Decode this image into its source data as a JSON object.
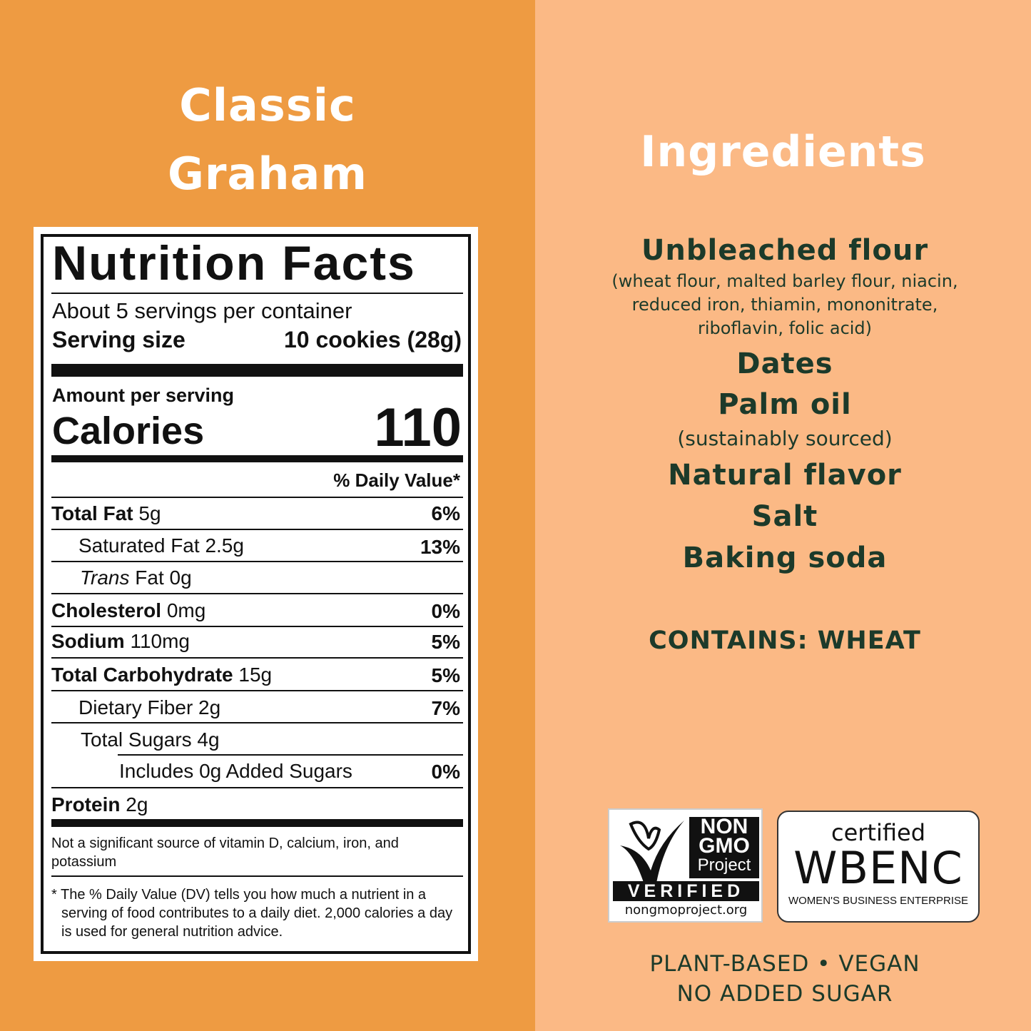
{
  "product": {
    "title_line1": "Classic",
    "title_line2": "Graham"
  },
  "colors": {
    "left_bg": "#EE9B42",
    "right_bg": "#FBB985",
    "text_dark": "#1C3A2A"
  },
  "nutrition": {
    "heading": "Nutrition Facts",
    "servings": "About 5 servings per container",
    "serving_size_label": "Serving size",
    "serving_size_value": "10 cookies (28g)",
    "amount_per_serving": "Amount per serving",
    "calories_label": "Calories",
    "calories_value": "110",
    "dv_header": "% Daily Value*",
    "rows": [
      {
        "name": "Total Fat",
        "amount": "5g",
        "dv": "6%"
      },
      {
        "name": "Saturated Fat",
        "amount": "2.5g",
        "dv": "13%"
      },
      {
        "name": "Trans",
        "name_suffix": "Fat",
        "amount": "0g",
        "dv": ""
      },
      {
        "name": "Cholesterol",
        "amount": "0mg",
        "dv": "0%"
      },
      {
        "name": "Sodium",
        "amount": "110mg",
        "dv": "5%"
      },
      {
        "name": "Total Carbohydrate",
        "amount": "15g",
        "dv": "5%"
      },
      {
        "name": "Dietary Fiber",
        "amount": "2g",
        "dv": "7%"
      },
      {
        "name": "Total Sugars",
        "amount": "4g",
        "dv": ""
      },
      {
        "name": "Includes 0g Added Sugars",
        "amount": "",
        "dv": "0%"
      },
      {
        "name": "Protein",
        "amount": "2g",
        "dv": ""
      }
    ],
    "micronutrient_note": "Not a significant source of vitamin D, calcium, iron, and potassium",
    "footnote": "* The % Daily Value (DV) tells you how much a nutrient in a serving of food contributes to a daily diet. 2,000 calories a day is used for general nutrition advice."
  },
  "ingredients": {
    "heading": "Ingredients",
    "items": [
      {
        "name": "Unbleached flour",
        "detail": "(wheat flour, malted barley flour, niacin, reduced iron, thiamin, mononitrate, riboflavin, folic acid)"
      },
      {
        "name": "Dates"
      },
      {
        "name": "Palm oil",
        "detail": "(sustainably sourced)"
      },
      {
        "name": "Natural flavor"
      },
      {
        "name": "Salt"
      },
      {
        "name": "Baking soda"
      }
    ],
    "allergen": "CONTAINS: WHEAT"
  },
  "badges": {
    "nongmo": {
      "line1": "NON",
      "line2": "GMO",
      "line3": "Project",
      "verified": "VERIFIED",
      "url": "nongmoproject.org"
    },
    "wbenc": {
      "certified": "certified",
      "name": "WBENC",
      "subtitle": "WOMEN'S BUSINESS ENTERPRISE"
    }
  },
  "claims": {
    "line1": "PLANT-BASED • VEGAN",
    "line2": "NO ADDED SUGAR"
  }
}
